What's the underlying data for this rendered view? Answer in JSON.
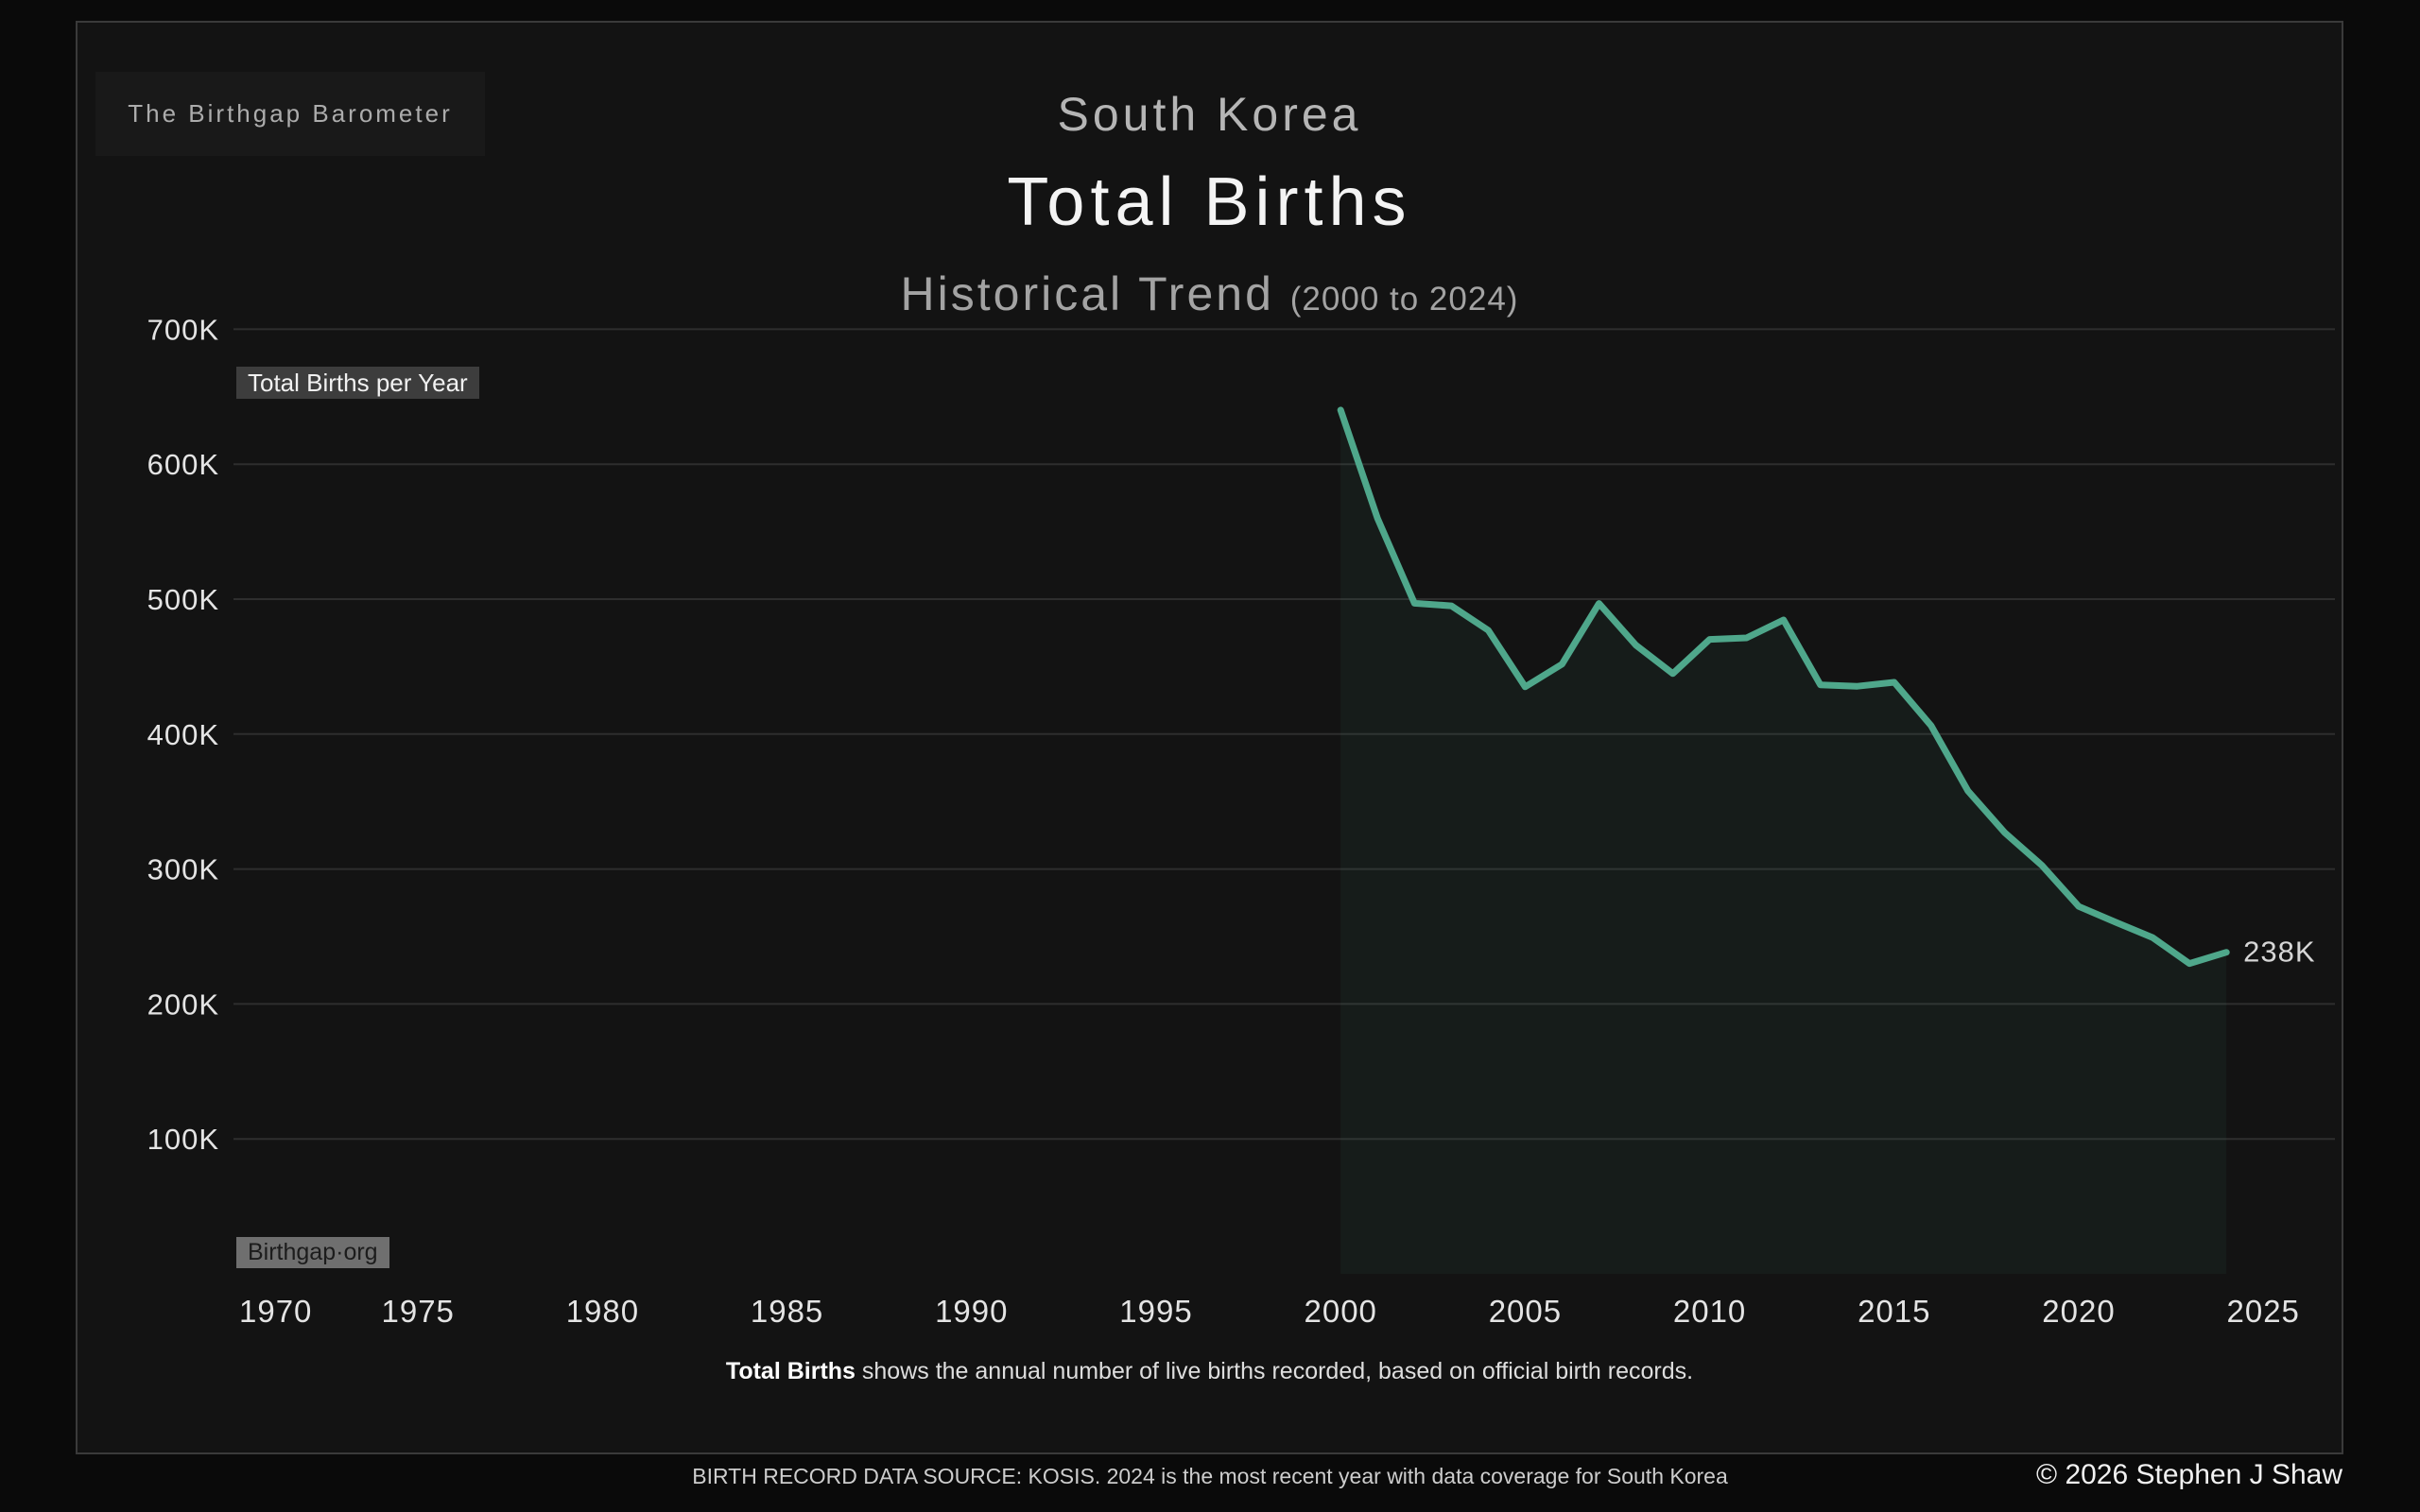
{
  "page": {
    "brand": "The Birthgap Barometer",
    "title_country": "South Korea",
    "title_main": "Total Births",
    "title_sub": "Historical Trend",
    "title_range": "(2000 to 2024)",
    "chip_series": "Total Births per Year",
    "chip_site": "Birthgap·org",
    "caption_bold": "Total Births",
    "caption_rest": " shows the annual number of live births recorded, based on official birth records.",
    "footer_note": "BIRTH RECORD DATA SOURCE: KOSIS. 2024 is the most recent year with data coverage for South Korea",
    "copyright": "© 2026 Stephen J Shaw"
  },
  "colors": {
    "line": "#4fa78b",
    "area_fill": "rgba(80,170,135,0.065)",
    "grid": "#2e2e2e",
    "tick_label": "#e4e4e4",
    "end_label": "#d6d6d6"
  },
  "chart_data": {
    "type": "area",
    "title": "South Korea Total Births — Historical Trend (2000 to 2024)",
    "series_name": "Total Births per Year",
    "unit": "births per year (thousands)",
    "x": [
      2000,
      2001,
      2002,
      2003,
      2004,
      2005,
      2006,
      2007,
      2008,
      2009,
      2010,
      2011,
      2012,
      2013,
      2014,
      2015,
      2016,
      2017,
      2018,
      2019,
      2020,
      2021,
      2022,
      2023,
      2024
    ],
    "values_thousands": [
      640.1,
      559.9,
      496.9,
      495.0,
      476.9,
      435.0,
      451.8,
      496.8,
      465.9,
      444.8,
      470.2,
      471.3,
      484.6,
      436.5,
      435.4,
      438.4,
      406.2,
      357.8,
      326.8,
      302.7,
      272.3,
      260.6,
      249.2,
      230.0,
      238.3
    ],
    "end_label": "238K",
    "x_domain": [
      1970,
      2027
    ],
    "y_domain_thousands": [
      0,
      700
    ],
    "x_ticks": [
      {
        "value": 1970,
        "label": "1970"
      },
      {
        "value": 1975,
        "label": "1975"
      },
      {
        "value": 1980,
        "label": "1980"
      },
      {
        "value": 1985,
        "label": "1985"
      },
      {
        "value": 1990,
        "label": "1990"
      },
      {
        "value": 1995,
        "label": "1995"
      },
      {
        "value": 2000,
        "label": "2000"
      },
      {
        "value": 2005,
        "label": "2005"
      },
      {
        "value": 2010,
        "label": "2010"
      },
      {
        "value": 2015,
        "label": "2015"
      },
      {
        "value": 2020,
        "label": "2020"
      },
      {
        "value": 2025,
        "label": "2025"
      }
    ],
    "y_ticks": [
      {
        "value": 100,
        "label": "100K"
      },
      {
        "value": 200,
        "label": "200K"
      },
      {
        "value": 300,
        "label": "300K"
      },
      {
        "value": 400,
        "label": "400K"
      },
      {
        "value": 500,
        "label": "500K"
      },
      {
        "value": 600,
        "label": "600K"
      },
      {
        "value": 700,
        "label": "700K"
      }
    ],
    "grid": "horizontal only",
    "legend": "none"
  }
}
